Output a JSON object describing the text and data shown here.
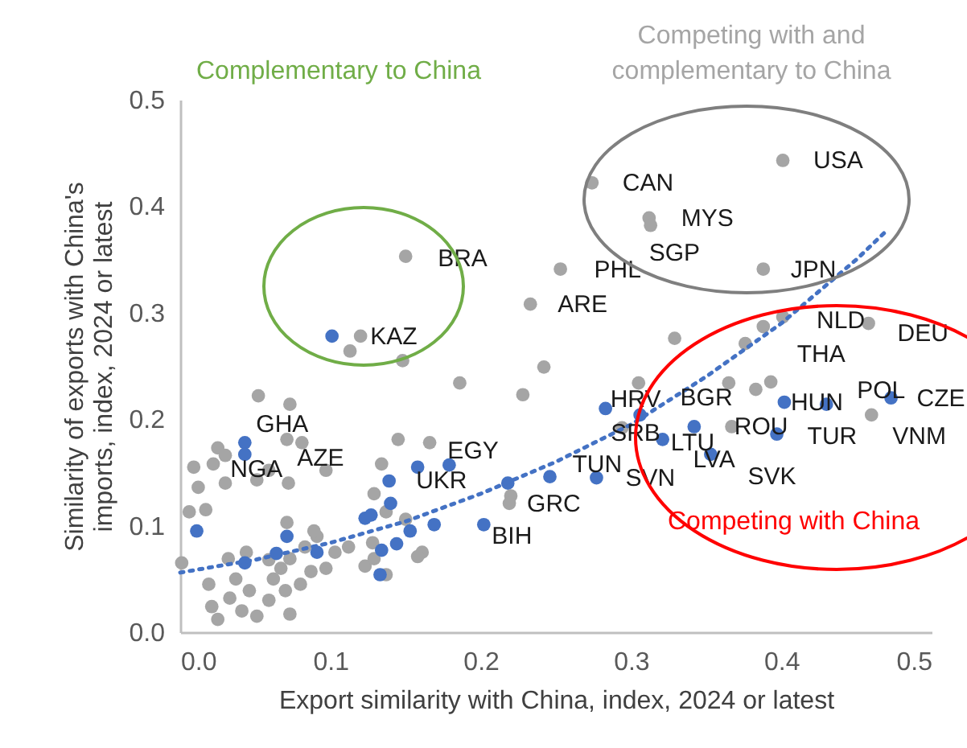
{
  "chart_data": {
    "type": "scatter",
    "xlabel": "Export similarity with China, index, 2024 or latest",
    "ylabel": "Similarity of exports with China's imports, index, 2024 or latest",
    "xlim": [
      0,
      0.5
    ],
    "ylim": [
      0,
      0.5
    ],
    "xticks": [
      {
        "value": 0,
        "label": "0.0"
      },
      0.1,
      0.2,
      0.3,
      0.4,
      0.5
    ],
    "yticks": [
      {
        "value": 0,
        "label": "0.0"
      },
      0.1,
      0.2,
      0.3,
      0.4,
      0.5
    ],
    "grid": false,
    "marker": "circle",
    "series": [
      {
        "color": "#a5a5a5",
        "x": [
          0.401,
          0.274,
          0.312,
          0.313,
          0.388,
          0.253,
          0.233,
          0.15,
          0.12,
          0.113,
          0.148,
          0.458,
          0.401,
          0.388,
          0.376,
          0.329,
          0.242,
          0.186,
          0.228,
          0.305,
          0.294,
          0.365,
          0.383,
          0.393,
          0.367,
          0.46,
          0.22,
          0.219,
          0.166,
          0.145,
          0.052,
          0.073,
          0.071,
          0.081,
          0.097,
          0.072,
          0.129,
          0.134,
          0.009,
          0.012,
          0.006,
          0.017,
          0.001,
          0.025,
          0.03,
          0.022,
          0.03,
          0.051,
          0.059,
          0.032,
          0.044,
          0.059,
          0.067,
          0.073,
          0.083,
          0.091,
          0.097,
          0.103,
          0.112,
          0.123,
          0.128,
          0.129,
          0.137,
          0.161,
          0.158,
          0.071,
          0.089,
          0.019,
          0.021,
          0.025,
          0.033,
          0.037,
          0.041,
          0.046,
          0.051,
          0.059,
          0.062,
          0.073,
          0.07,
          0.08,
          0.087,
          0.15,
          0.137
        ],
        "values": [
          0.443,
          0.422,
          0.389,
          0.382,
          0.341,
          0.341,
          0.308,
          0.353,
          0.278,
          0.264,
          0.255,
          0.29,
          0.296,
          0.287,
          0.271,
          0.276,
          0.249,
          0.234,
          0.223,
          0.234,
          0.192,
          0.234,
          0.228,
          0.235,
          0.193,
          0.204,
          0.128,
          0.121,
          0.178,
          0.181,
          0.222,
          0.214,
          0.181,
          0.178,
          0.152,
          0.14,
          0.13,
          0.158,
          0.155,
          0.136,
          0.113,
          0.115,
          0.065,
          0.173,
          0.166,
          0.158,
          0.14,
          0.143,
          0.152,
          0.069,
          0.075,
          0.068,
          0.06,
          0.069,
          0.08,
          0.09,
          0.06,
          0.075,
          0.08,
          0.062,
          0.084,
          0.069,
          0.054,
          0.075,
          0.071,
          0.103,
          0.095,
          0.045,
          0.024,
          0.012,
          0.032,
          0.05,
          0.02,
          0.039,
          0.015,
          0.03,
          0.05,
          0.017,
          0.039,
          0.045,
          0.057,
          0.106,
          0.113
        ]
      },
      {
        "color": "#4472c4",
        "x": [
          0.101,
          0.283,
          0.306,
          0.321,
          0.342,
          0.353,
          0.397,
          0.402,
          0.43,
          0.473,
          0.277,
          0.246,
          0.218,
          0.202,
          0.179,
          0.043,
          0.043,
          0.158,
          0.139,
          0.14,
          0.123,
          0.127,
          0.153,
          0.169,
          0.144,
          0.134,
          0.133,
          0.011,
          0.071,
          0.064,
          0.091,
          0.043
        ],
        "values": [
          0.278,
          0.21,
          0.204,
          0.181,
          0.193,
          0.167,
          0.186,
          0.216,
          0.214,
          0.22,
          0.145,
          0.146,
          0.14,
          0.101,
          0.157,
          0.178,
          0.167,
          0.155,
          0.142,
          0.121,
          0.107,
          0.11,
          0.095,
          0.101,
          0.083,
          0.077,
          0.054,
          0.095,
          0.09,
          0.074,
          0.075,
          0.065
        ]
      },
      {
        "type": "line",
        "line_style": "dotted",
        "marker": "none",
        "color": "#4472c4",
        "x": [
          0,
          0.05,
          0.1,
          0.15,
          0.2,
          0.25,
          0.3,
          0.35,
          0.4,
          0.45,
          0.47
        ],
        "values": [
          0.056,
          0.068,
          0.084,
          0.104,
          0.13,
          0.16,
          0.195,
          0.24,
          0.29,
          0.35,
          0.377
        ]
      }
    ],
    "annotations": [
      "Complementary to China",
      "Competing with and complementary to China",
      "Competing with China",
      {
        "text": "CAN",
        "x": 0.274,
        "y": 0.422
      },
      {
        "text": "USA",
        "x": 0.401,
        "y": 0.443
      },
      {
        "text": "MYS",
        "x": 0.312,
        "y": 0.389
      },
      {
        "text": "SGP",
        "x": 0.313,
        "y": 0.382
      },
      {
        "text": "JPN",
        "x": 0.388,
        "y": 0.341
      },
      {
        "text": "PHL",
        "x": 0.253,
        "y": 0.341
      },
      {
        "text": "ARE",
        "x": 0.233,
        "y": 0.308
      },
      {
        "text": "BRA",
        "x": 0.15,
        "y": 0.353
      },
      {
        "text": "KAZ",
        "x": 0.12,
        "y": 0.278
      },
      {
        "text": "NLD",
        "x": 0.401,
        "y": 0.296
      },
      {
        "text": "THA",
        "x": 0.388,
        "y": 0.287
      },
      {
        "text": "DEU",
        "x": 0.458,
        "y": 0.29
      },
      {
        "text": "CZE",
        "x": 0.473,
        "y": 0.22
      },
      {
        "text": "HRV",
        "x": 0.283,
        "y": 0.21
      },
      {
        "text": "BGR",
        "x": 0.306,
        "y": 0.204
      },
      {
        "text": "SRB",
        "x": 0.294,
        "y": 0.192
      },
      {
        "text": "LTU",
        "x": 0.321,
        "y": 0.181
      },
      {
        "text": "LVA",
        "x": 0.353,
        "y": 0.167
      },
      {
        "text": "SVN",
        "x": 0.277,
        "y": 0.145
      },
      {
        "text": "TUN",
        "x": 0.246,
        "y": 0.146
      },
      {
        "text": "ROU",
        "x": 0.342,
        "y": 0.193
      },
      {
        "text": "HUN",
        "x": 0.402,
        "y": 0.216
      },
      {
        "text": "TUR",
        "x": 0.397,
        "y": 0.186
      },
      {
        "text": "POL",
        "x": 0.43,
        "y": 0.214
      },
      {
        "text": "VNM",
        "x": 0.46,
        "y": 0.204
      },
      {
        "text": "SVK",
        "x": 0.367,
        "y": 0.193
      },
      {
        "text": "EGY",
        "x": 0.179,
        "y": 0.157
      },
      {
        "text": "UKR",
        "x": 0.158,
        "y": 0.155
      },
      {
        "text": "GRC",
        "x": 0.219,
        "y": 0.121
      },
      {
        "text": "BIH",
        "x": 0.202,
        "y": 0.101
      },
      {
        "text": "GHA",
        "x": 0.073,
        "y": 0.214
      },
      {
        "text": "NGA",
        "x": 0.043,
        "y": 0.167
      },
      {
        "text": "AZE",
        "x": 0.097,
        "y": 0.152
      }
    ]
  }
}
